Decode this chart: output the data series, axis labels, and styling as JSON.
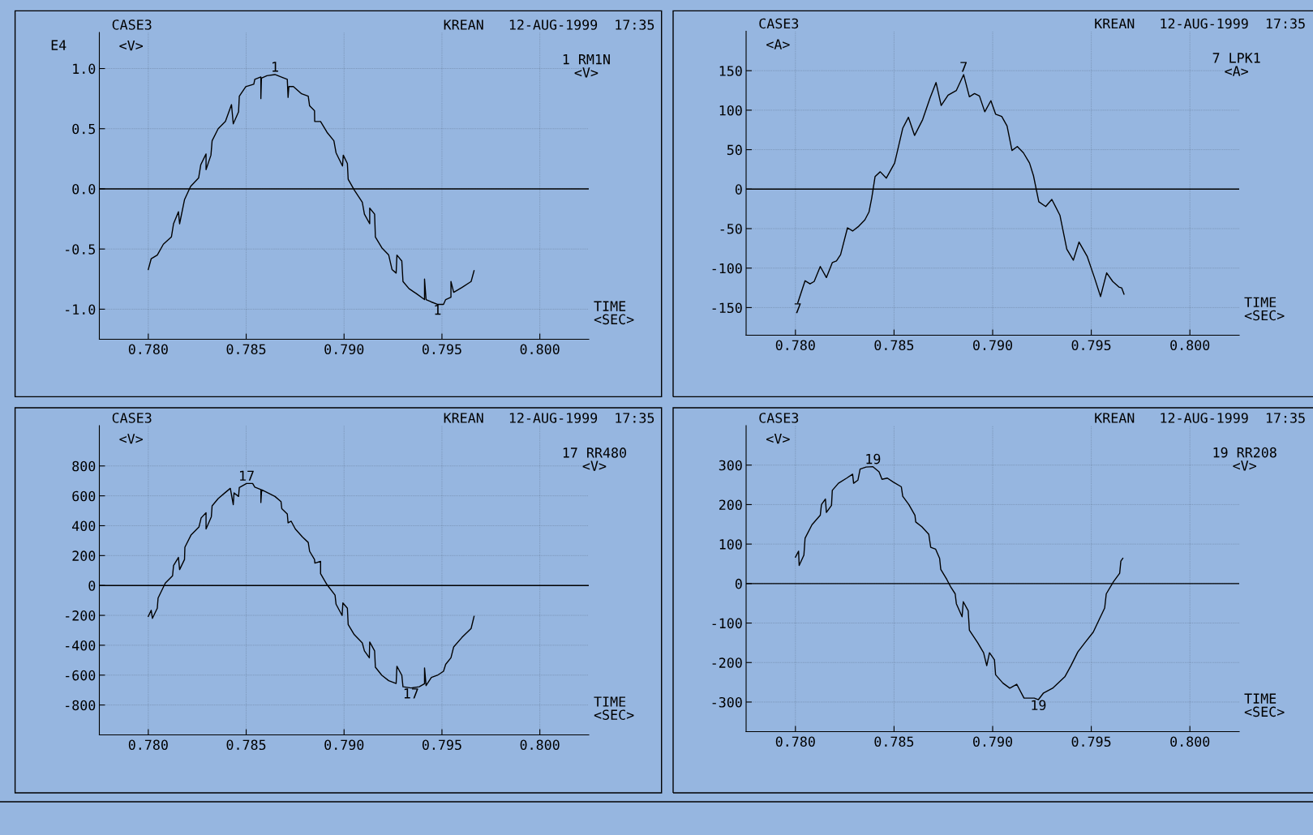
{
  "chart_data": [
    {
      "type": "line",
      "title": "CASE3",
      "subtitle": "KREAN   12-AUG-1999  17:35",
      "xlabel": "TIME\n<SEC>",
      "ylabel": "<V>",
      "legend": "top right",
      "grid": true,
      "xlim": [
        0.7775,
        0.8025
      ],
      "ylim": [
        -1.25,
        1.3
      ],
      "xticks": [
        {
          "value": 0.78,
          "label": "0.780"
        },
        {
          "value": 0.785,
          "label": "0.785"
        },
        {
          "value": 0.79,
          "label": "0.790"
        },
        {
          "value": 0.795,
          "label": "0.795"
        },
        {
          "value": 0.8,
          "label": "0.800"
        }
      ],
      "yticks": [
        {
          "value": -1,
          "label": "-1.0"
        },
        {
          "value": -0.5,
          "label": "-0.5"
        },
        {
          "value": 0,
          "label": "0.0"
        },
        {
          "value": 0.5,
          "label": "0.5"
        },
        {
          "value": 1,
          "label": "1.0"
        }
      ],
      "ref_lines": [
        {
          "axis": "y",
          "value": 0
        }
      ],
      "annotations": [
        "E4",
        {
          "text": "1",
          "x": 0.78647,
          "y": 0.95
        },
        {
          "text": "1",
          "x": 0.79477,
          "y": -0.96
        }
      ],
      "series": [
        {
          "name": "1 RM1N\n<V>",
          "color": "#000000",
          "x": [
            0.78,
            0.78015,
            0.78046,
            0.78077,
            0.78118,
            0.78129,
            0.78154,
            0.7816,
            0.78185,
            0.78216,
            0.78257,
            0.78268,
            0.78295,
            0.78295,
            0.7832,
            0.78326,
            0.78357,
            0.78394,
            0.78425,
            0.78434,
            0.78461,
            0.78465,
            0.78498,
            0.78539,
            0.78544,
            0.78575,
            0.78575,
            0.78578,
            0.78606,
            0.78647,
            0.78678,
            0.7871,
            0.78714,
            0.78718,
            0.78741,
            0.78783,
            0.78817,
            0.78824,
            0.78849,
            0.7885,
            0.7888,
            0.78913,
            0.78948,
            0.78959,
            0.78992,
            0.78996,
            0.79017,
            0.79021,
            0.79052,
            0.79093,
            0.79104,
            0.79131,
            0.79131,
            0.79156,
            0.7916,
            0.79193,
            0.79228,
            0.79245,
            0.79266,
            0.7927,
            0.79295,
            0.79301,
            0.79332,
            0.79369,
            0.79411,
            0.79411,
            0.79419,
            0.79446,
            0.79477,
            0.79508,
            0.79519,
            0.79546,
            0.79546,
            0.7956,
            0.79602,
            0.79649,
            0.79664
          ],
          "values": [
            -0.67,
            -0.58,
            -0.55,
            -0.46,
            -0.4,
            -0.29,
            -0.19,
            -0.29,
            -0.09,
            0.02,
            0.09,
            0.2,
            0.29,
            0.16,
            0.28,
            0.4,
            0.5,
            0.56,
            0.7,
            0.54,
            0.64,
            0.77,
            0.85,
            0.87,
            0.91,
            0.93,
            0.75,
            0.92,
            0.94,
            0.95,
            0.93,
            0.91,
            0.76,
            0.85,
            0.85,
            0.79,
            0.77,
            0.69,
            0.65,
            0.56,
            0.56,
            0.47,
            0.4,
            0.3,
            0.19,
            0.28,
            0.21,
            0.08,
            -0.01,
            -0.11,
            -0.21,
            -0.29,
            -0.16,
            -0.21,
            -0.4,
            -0.49,
            -0.55,
            -0.67,
            -0.7,
            -0.55,
            -0.6,
            -0.77,
            -0.83,
            -0.87,
            -0.92,
            -0.75,
            -0.92,
            -0.94,
            -0.96,
            -0.96,
            -0.92,
            -0.9,
            -0.77,
            -0.86,
            -0.82,
            -0.77,
            -0.68
          ]
        }
      ]
    },
    {
      "type": "line",
      "title": "CASE3",
      "subtitle": "KREAN   12-AUG-1999  17:35",
      "xlabel": "TIME\n<SEC>",
      "ylabel": "<A>",
      "legend": "top right",
      "grid": true,
      "xlim": [
        0.7775,
        0.8025
      ],
      "ylim": [
        -185,
        200
      ],
      "xticks": [
        {
          "value": 0.78,
          "label": "0.780"
        },
        {
          "value": 0.785,
          "label": "0.785"
        },
        {
          "value": 0.79,
          "label": "0.790"
        },
        {
          "value": 0.795,
          "label": "0.795"
        },
        {
          "value": 0.8,
          "label": "0.800"
        }
      ],
      "yticks": [
        -150,
        -100,
        -50,
        0,
        50,
        100,
        150
      ],
      "ref_lines": [
        {
          "axis": "y",
          "value": 0
        }
      ],
      "annotations": [
        {
          "text": "7",
          "x": 0.78853,
          "y": 145
        },
        {
          "text": "7",
          "x": 0.78012,
          "y": -144
        }
      ],
      "series": [
        {
          "name": "7 LPK1\n<A>",
          "color": "#000000",
          "x": [
            0.78012,
            0.78049,
            0.78074,
            0.78095,
            0.78126,
            0.78157,
            0.78187,
            0.78208,
            0.78229,
            0.78264,
            0.7829,
            0.78321,
            0.78352,
            0.78373,
            0.78387,
            0.78404,
            0.7843,
            0.78461,
            0.78503,
            0.78544,
            0.78573,
            0.78604,
            0.78645,
            0.78682,
            0.78713,
            0.78739,
            0.78774,
            0.78816,
            0.78853,
            0.78882,
            0.78908,
            0.78933,
            0.7896,
            0.78991,
            0.79015,
            0.79046,
            0.79073,
            0.79098,
            0.79125,
            0.79156,
            0.79187,
            0.79207,
            0.79234,
            0.79269,
            0.793,
            0.79341,
            0.79376,
            0.79409,
            0.79438,
            0.79479,
            0.79516,
            0.79547,
            0.79578,
            0.79609,
            0.7964,
            0.79654,
            0.79666
          ],
          "values": [
            -144,
            -116,
            -120,
            -117,
            -98,
            -112,
            -93,
            -91,
            -83,
            -49,
            -53,
            -47,
            -39,
            -29,
            -11,
            16,
            22,
            14,
            33,
            77,
            91,
            68,
            88,
            115,
            135,
            106,
            119,
            125,
            145,
            117,
            121,
            118,
            98,
            112,
            95,
            92,
            80,
            49,
            54,
            46,
            33,
            17,
            -16,
            -22,
            -13,
            -33,
            -76,
            -90,
            -67,
            -85,
            -112,
            -136,
            -106,
            -117,
            -124,
            -125,
            -133
          ]
        }
      ]
    },
    {
      "type": "line",
      "title": "CASE3",
      "subtitle": "KREAN   12-AUG-1999  17:35",
      "xlabel": "TIME\n<SEC>",
      "ylabel": "<V>",
      "legend": "top right",
      "grid": true,
      "xlim": [
        0.7775,
        0.8025
      ],
      "ylim": [
        -1000,
        1070
      ],
      "xticks": [
        {
          "value": 0.78,
          "label": "0.780"
        },
        {
          "value": 0.785,
          "label": "0.785"
        },
        {
          "value": 0.79,
          "label": "0.790"
        },
        {
          "value": 0.795,
          "label": "0.795"
        },
        {
          "value": 0.8,
          "label": "0.800"
        }
      ],
      "yticks": [
        -800,
        -600,
        -400,
        -200,
        0,
        200,
        400,
        600,
        800
      ],
      "ref_lines": [
        {
          "axis": "y",
          "value": 0
        }
      ],
      "annotations": [
        {
          "text": "17",
          "x": 0.78502,
          "y": 683
        },
        {
          "text": "17",
          "x": 0.79342,
          "y": -686
        }
      ],
      "series": [
        {
          "name": "17 RR480\n<V>",
          "color": "#000000",
          "x": [
            0.78,
            0.78015,
            0.78021,
            0.78046,
            0.7805,
            0.78087,
            0.78124,
            0.78129,
            0.78154,
            0.7816,
            0.78185,
            0.78187,
            0.78218,
            0.78259,
            0.7827,
            0.78295,
            0.78295,
            0.78322,
            0.78326,
            0.78357,
            0.78394,
            0.78419,
            0.78434,
            0.78438,
            0.78461,
            0.78465,
            0.78502,
            0.78533,
            0.78544,
            0.78575,
            0.78575,
            0.78579,
            0.78606,
            0.78647,
            0.78678,
            0.78682,
            0.7871,
            0.78714,
            0.7873,
            0.78751,
            0.78788,
            0.78817,
            0.78824,
            0.78849,
            0.78851,
            0.7888,
            0.7888,
            0.78913,
            0.78954,
            0.78959,
            0.7899,
            0.78994,
            0.79017,
            0.79021,
            0.79052,
            0.79093,
            0.79104,
            0.79129,
            0.79131,
            0.79156,
            0.7916,
            0.79193,
            0.79228,
            0.79266,
            0.7927,
            0.79295,
            0.79301,
            0.79342,
            0.79384,
            0.79411,
            0.79411,
            0.79419,
            0.79446,
            0.79477,
            0.79508,
            0.79519,
            0.79546,
            0.7956,
            0.79602,
            0.79649,
            0.79664
          ],
          "values": [
            -207,
            -166,
            -220,
            -152,
            -84,
            16,
            65,
            133,
            188,
            106,
            174,
            256,
            337,
            392,
            452,
            487,
            378,
            460,
            533,
            582,
            623,
            650,
            541,
            620,
            596,
            656,
            683,
            683,
            658,
            642,
            555,
            640,
            623,
            596,
            561,
            514,
            479,
            419,
            430,
            378,
            324,
            288,
            229,
            174,
            150,
            161,
            79,
            5,
            -65,
            -125,
            -201,
            -117,
            -152,
            -261,
            -329,
            -384,
            -438,
            -484,
            -378,
            -438,
            -547,
            -601,
            -637,
            -656,
            -541,
            -601,
            -678,
            -686,
            -678,
            -658,
            -552,
            -670,
            -615,
            -601,
            -574,
            -528,
            -484,
            -411,
            -348,
            -288,
            -207
          ]
        }
      ]
    },
    {
      "type": "line",
      "title": "CASE3",
      "subtitle": "KREAN   12-AUG-1999  17:35",
      "xlabel": "TIME\n<SEC>",
      "ylabel": "<V>",
      "legend": "top right",
      "grid": true,
      "xlim": [
        0.7775,
        0.8025
      ],
      "ylim": [
        -375,
        400
      ],
      "xticks": [
        {
          "value": 0.78,
          "label": "0.780"
        },
        {
          "value": 0.785,
          "label": "0.785"
        },
        {
          "value": 0.79,
          "label": "0.790"
        },
        {
          "value": 0.795,
          "label": "0.795"
        },
        {
          "value": 0.8,
          "label": "0.800"
        }
      ],
      "yticks": [
        -300,
        -200,
        -100,
        0,
        100,
        200,
        300
      ],
      "ref_lines": [
        {
          "axis": "y",
          "value": 0
        }
      ],
      "annotations": [
        {
          "text": "19",
          "x": 0.78393,
          "y": 296
        },
        {
          "text": "19",
          "x": 0.79232,
          "y": -294
        }
      ],
      "series": [
        {
          "name": "19 RR208\n<V>",
          "color": "#000000",
          "x": [
            0.78,
            0.78016,
            0.78019,
            0.78043,
            0.78049,
            0.78084,
            0.78126,
            0.78132,
            0.78152,
            0.78157,
            0.78183,
            0.78187,
            0.78218,
            0.7826,
            0.7829,
            0.78295,
            0.78317,
            0.78328,
            0.78358,
            0.78393,
            0.78424,
            0.78439,
            0.78466,
            0.78496,
            0.78537,
            0.78544,
            0.78575,
            0.78606,
            0.7861,
            0.78641,
            0.78676,
            0.78686,
            0.78711,
            0.78731,
            0.78737,
            0.78768,
            0.78789,
            0.7881,
            0.78816,
            0.78845,
            0.78851,
            0.78876,
            0.78882,
            0.78923,
            0.78954,
            0.7897,
            0.78984,
            0.79009,
            0.79015,
            0.79052,
            0.79087,
            0.79122,
            0.79159,
            0.79211,
            0.79232,
            0.79258,
            0.79304,
            0.79366,
            0.79397,
            0.79432,
            0.79469,
            0.7951,
            0.79541,
            0.79568,
            0.79576,
            0.79613,
            0.79644,
            0.7965,
            0.7966
          ],
          "values": [
            67,
            82,
            46,
            72,
            115,
            149,
            173,
            200,
            214,
            180,
            198,
            236,
            254,
            267,
            277,
            254,
            262,
            290,
            295,
            296,
            283,
            264,
            267,
            257,
            245,
            221,
            200,
            173,
            156,
            144,
            125,
            92,
            87,
            64,
            36,
            10,
            -10,
            -26,
            -51,
            -84,
            -46,
            -69,
            -118,
            -149,
            -175,
            -208,
            -175,
            -193,
            -231,
            -252,
            -265,
            -255,
            -290,
            -290,
            -294,
            -277,
            -265,
            -236,
            -208,
            -173,
            -149,
            -123,
            -90,
            -62,
            -26,
            5,
            26,
            57,
            64
          ]
        }
      ]
    }
  ]
}
